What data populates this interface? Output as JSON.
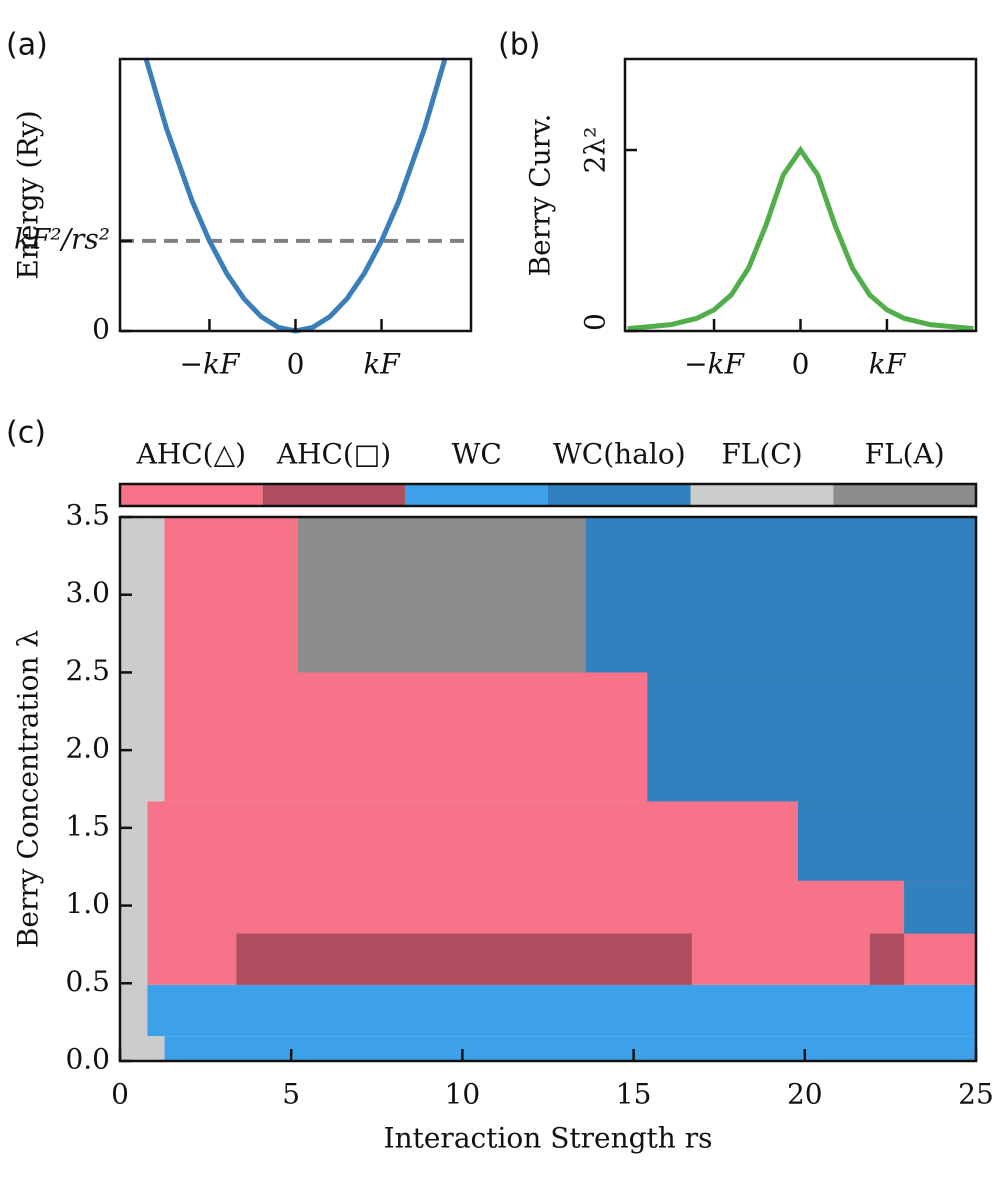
{
  "chart_data": [
    {
      "type": "line",
      "panel_label": "(a)",
      "ylabel": "Energy (Ry)",
      "x": [
        -1.74,
        -1.5,
        -1.2,
        -1,
        -0.8,
        -0.6,
        -0.4,
        -0.2,
        0,
        0.2,
        0.4,
        0.6,
        0.8,
        1,
        1.2,
        1.5,
        1.74
      ],
      "series": [
        {
          "color": "#3a7fb9",
          "values": [
            3.03,
            2.25,
            1.44,
            1,
            0.64,
            0.36,
            0.16,
            0.04,
            0,
            0.04,
            0.16,
            0.36,
            0.64,
            1,
            1.44,
            2.25,
            3.03
          ]
        }
      ],
      "reference_line": {
        "y": 1,
        "color": "#808080"
      },
      "xlim": [
        -2.04,
        2.04
      ],
      "xticks": [
        {
          "value": -1,
          "label": "−kF"
        },
        0,
        {
          "value": 1,
          "label": "kF"
        }
      ],
      "ylim": [
        0,
        3.02
      ],
      "yticks": [
        0,
        {
          "value": 1,
          "label": "kF²/rs²"
        }
      ]
    },
    {
      "type": "line",
      "panel_label": "(b)",
      "ylabel": "Berry Curv.",
      "x": [
        -2,
        -1.5,
        -1.2,
        -1,
        -0.8,
        -0.6,
        -0.4,
        -0.2,
        0,
        0.2,
        0.4,
        0.6,
        0.8,
        1,
        1.2,
        1.5,
        2
      ],
      "series": [
        {
          "color": "#52ae4a",
          "values": [
            0.013,
            0.035,
            0.07,
            0.117,
            0.2,
            0.348,
            0.584,
            0.862,
            1,
            0.862,
            0.584,
            0.348,
            0.2,
            0.117,
            0.07,
            0.035,
            0.013
          ]
        }
      ],
      "xlim": [
        -2.03,
        2.03
      ],
      "xticks": [
        {
          "value": -1,
          "label": "−kF"
        },
        0,
        {
          "value": 1,
          "label": "kF"
        }
      ],
      "ylim": [
        0,
        1.503
      ],
      "yticks": [
        0,
        {
          "value": 1,
          "label": "2λ²"
        }
      ]
    },
    {
      "type": "phase_diagram",
      "panel_label": "(c)",
      "xlabel": "Interaction Strength rs",
      "ylabel": "Berry Concentration λ",
      "phases": [
        {
          "name": "AHC(△)",
          "color": "#f7738a"
        },
        {
          "name": "AHC(□)",
          "color": "#ad4d5f"
        },
        {
          "name": "WC",
          "color": "#3ca1e8"
        },
        {
          "name": "WC(halo)",
          "color": "#3181be"
        },
        {
          "name": "FL(C)",
          "color": "#cccccc"
        },
        {
          "name": "FL(A)",
          "color": "#8c8c8c"
        }
      ],
      "regions": [
        {
          "x": [
            0,
            0.8
          ],
          "y": [
            0,
            3.5
          ],
          "phase": 4
        },
        {
          "x": [
            0.8,
            1.3
          ],
          "y": [
            0,
            0.16
          ],
          "phase": 4
        },
        {
          "x": [
            0.8,
            1.3
          ],
          "y": [
            1.67,
            3.5
          ],
          "phase": 4
        },
        {
          "x": [
            0.8,
            25
          ],
          "y": [
            0.16,
            0.49
          ],
          "phase": 2
        },
        {
          "x": [
            1.3,
            25
          ],
          "y": [
            0,
            0.16
          ],
          "phase": 2
        },
        {
          "x": [
            0.8,
            25
          ],
          "y": [
            0.49,
            1.67
          ],
          "phase": 0
        },
        {
          "x": [
            1.3,
            25
          ],
          "y": [
            1.67,
            3.5
          ],
          "phase": 0
        },
        {
          "x": [
            3.4,
            16.7
          ],
          "y": [
            0.49,
            0.82
          ],
          "phase": 1
        },
        {
          "x": [
            21.9,
            22.9
          ],
          "y": [
            0.49,
            0.82
          ],
          "phase": 1
        },
        {
          "x": [
            22.9,
            25
          ],
          "y": [
            0.82,
            1.16
          ],
          "phase": 3
        },
        {
          "x": [
            19.8,
            25
          ],
          "y": [
            1.16,
            1.67
          ],
          "phase": 3
        },
        {
          "x": [
            15.4,
            25
          ],
          "y": [
            1.67,
            2.5
          ],
          "phase": 3
        },
        {
          "x": [
            13.6,
            25
          ],
          "y": [
            2.5,
            3.5
          ],
          "phase": 3
        },
        {
          "x": [
            5.2,
            13.6
          ],
          "y": [
            2.5,
            3.5
          ],
          "phase": 5
        }
      ],
      "xlim": [
        0,
        25
      ],
      "xticks": [
        0,
        5,
        10,
        15,
        20,
        25
      ],
      "ylim": [
        0,
        3.5
      ],
      "yticks": [
        {
          "value": 0,
          "label": "0.0"
        },
        {
          "value": 0.5,
          "label": "0.5"
        },
        {
          "value": 1,
          "label": "1.0"
        },
        {
          "value": 1.5,
          "label": "1.5"
        },
        {
          "value": 2,
          "label": "2.0"
        },
        {
          "value": 2.5,
          "label": "2.5"
        },
        {
          "value": 3,
          "label": "3.0"
        },
        {
          "value": 3.5,
          "label": "3.5"
        }
      ]
    }
  ]
}
